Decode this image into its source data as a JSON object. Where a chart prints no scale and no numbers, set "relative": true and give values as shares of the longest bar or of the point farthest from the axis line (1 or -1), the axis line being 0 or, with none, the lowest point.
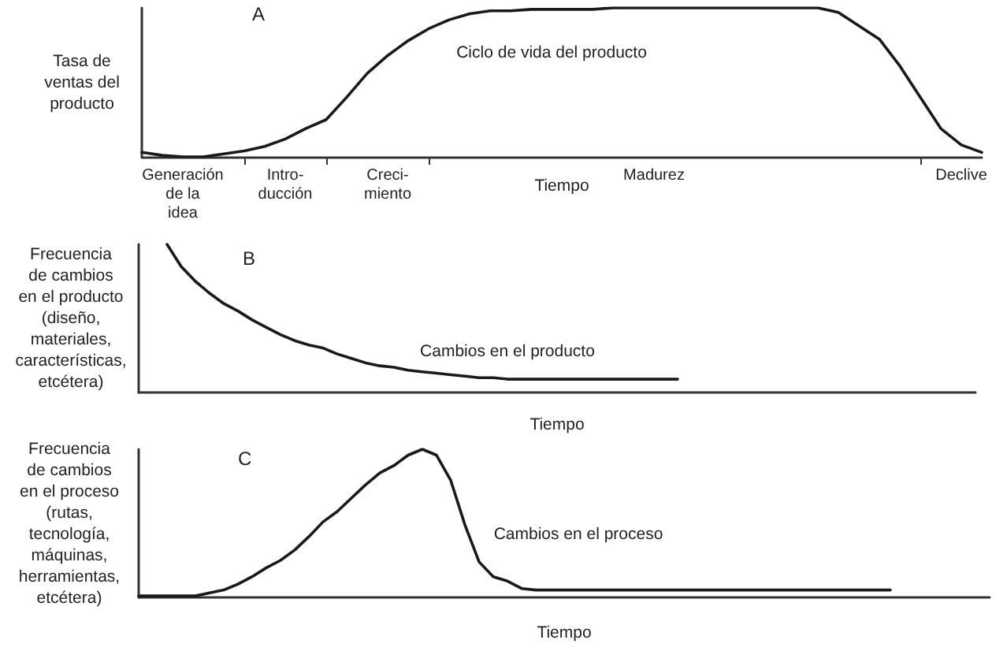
{
  "chart_data": [
    {
      "type": "line",
      "title": "A",
      "ylabel": "Tasa de\nventas del\nproducto",
      "xlabel": "Tiempo",
      "relative": true,
      "marker": "none",
      "categories": [
        null,
        null,
        "Generación\nde la\nidea",
        null,
        null,
        null,
        null,
        "Intro-\nducción",
        null,
        null,
        null,
        null,
        "Creci-\nmiento",
        null,
        null,
        null,
        null,
        null,
        null,
        null,
        null,
        null,
        null,
        null,
        null,
        "Madurez",
        null,
        null,
        null,
        null,
        null,
        null,
        null,
        null,
        null,
        null,
        null,
        null,
        null,
        null,
        "Declive",
        null
      ],
      "series": [
        {
          "name": "Ciclo de vida del producto",
          "color": "#1a1a1a",
          "values": [
            0.03,
            0.01,
            0,
            0,
            0.02,
            0.04,
            0.07,
            0.12,
            0.19,
            0.25,
            0.4,
            0.56,
            0.68,
            0.78,
            0.86,
            0.92,
            0.96,
            0.98,
            0.98,
            0.99,
            0.99,
            0.99,
            0.99,
            1,
            1,
            1,
            1,
            1,
            1,
            1,
            1,
            1,
            1,
            1,
            0.97,
            0.88,
            0.79,
            0.61,
            0.4,
            0.19,
            0.08,
            0.03
          ]
        }
      ]
    },
    {
      "type": "line",
      "title": "B",
      "ylabel": "Frecuencia\nde cambios\nen el producto\n(diseño,\nmateriales,\ncaracterísticas,\netcétera)",
      "xlabel": "Tiempo",
      "relative": true,
      "marker": "none",
      "categories": [
        null,
        null,
        null,
        null,
        null,
        null,
        null,
        null,
        null,
        null,
        null,
        null,
        null,
        null,
        null,
        null,
        null,
        null,
        null,
        null,
        null,
        null,
        null,
        null,
        null,
        null,
        null,
        null,
        null,
        null,
        null,
        null,
        null,
        null,
        null,
        null,
        null,
        null,
        null,
        null,
        null,
        null,
        null,
        null,
        null,
        null,
        null,
        null,
        null,
        null,
        null,
        null,
        null,
        null,
        null,
        null,
        null,
        null,
        null,
        null
      ],
      "series": [
        {
          "name": "Cambios en el producto",
          "color": "#1a1a1a",
          "values": [
            null,
            null,
            1.0,
            0.85,
            0.75,
            0.67,
            0.6,
            0.55,
            0.49,
            0.44,
            0.39,
            0.35,
            0.32,
            0.3,
            0.26,
            0.23,
            0.2,
            0.18,
            0.17,
            0.15,
            0.14,
            0.13,
            0.12,
            0.11,
            0.1,
            0.1,
            0.09,
            0.09,
            0.09,
            0.09,
            0.09,
            0.09,
            0.09,
            0.09,
            0.09,
            0.09,
            0.09,
            0.09,
            0.09,
            null,
            null,
            null,
            null,
            null,
            null,
            null,
            null,
            null,
            null,
            null,
            null,
            null,
            null,
            null,
            null,
            null,
            null,
            null,
            null,
            null
          ]
        }
      ]
    },
    {
      "type": "line",
      "title": "C",
      "ylabel": "Frecuencia\nde cambios\nen el proceso\n(rutas,\ntecnología,\nmáquinas,\nherramientas,\netcétera)",
      "xlabel": "Tiempo",
      "relative": true,
      "marker": "none",
      "categories": [
        null,
        null,
        null,
        null,
        null,
        null,
        null,
        null,
        null,
        null,
        null,
        null,
        null,
        null,
        null,
        null,
        null,
        null,
        null,
        null,
        null,
        null,
        null,
        null,
        null,
        null,
        null,
        null,
        null,
        null,
        null,
        null,
        null,
        null,
        null,
        null,
        null,
        null,
        null,
        null,
        null,
        null,
        null,
        null,
        null,
        null,
        null,
        null,
        null,
        null,
        null,
        null,
        null,
        null,
        null,
        null,
        null,
        null,
        null,
        null,
        null
      ],
      "series": [
        {
          "name": "Cambios en el proceso",
          "color": "#1a1a1a",
          "values": [
            0.01,
            0.01,
            0.01,
            0.01,
            0.01,
            0.03,
            0.05,
            0.09,
            0.14,
            0.2,
            0.25,
            0.32,
            0.41,
            0.51,
            0.58,
            0.67,
            0.76,
            0.84,
            0.89,
            0.96,
            1.0,
            0.96,
            0.79,
            0.49,
            0.24,
            0.14,
            0.11,
            0.06,
            0.05,
            0.05,
            0.05,
            0.05,
            0.05,
            0.05,
            0.05,
            0.05,
            0.05,
            0.05,
            0.05,
            0.05,
            0.05,
            0.05,
            0.05,
            0.05,
            0.05,
            0.05,
            0.05,
            0.05,
            0.05,
            0.05,
            0.05,
            0.05,
            0.05,
            0.05,
            null,
            null,
            null,
            null,
            null,
            null,
            null
          ]
        }
      ]
    }
  ]
}
